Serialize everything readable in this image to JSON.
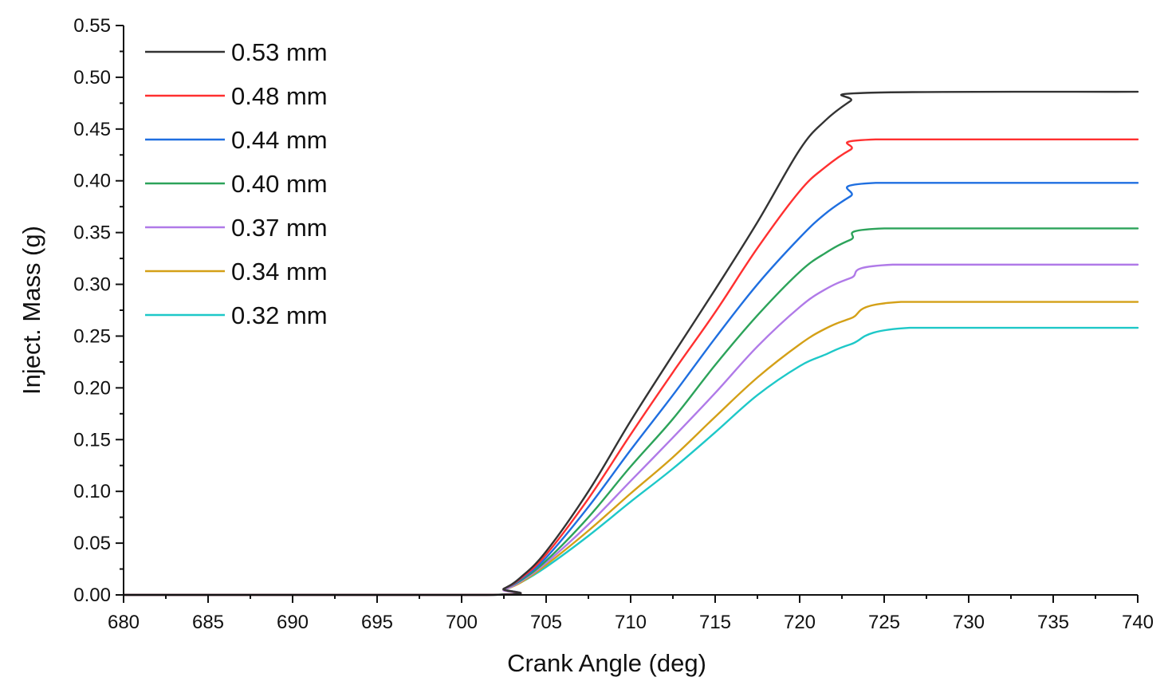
{
  "chart_data": {
    "type": "line",
    "title": "",
    "xlabel": "Crank Angle (deg)",
    "ylabel": "Inject. Mass (g)",
    "xlim": [
      680,
      740
    ],
    "ylim": [
      0,
      0.55
    ],
    "xticks": [
      "680",
      "685",
      "690",
      "695",
      "700",
      "705",
      "710",
      "715",
      "720",
      "725",
      "730",
      "735",
      "740"
    ],
    "yticks": [
      "0.00",
      "0.05",
      "0.10",
      "0.15",
      "0.20",
      "0.25",
      "0.30",
      "0.35",
      "0.40",
      "0.45",
      "0.50",
      "0.55"
    ],
    "grid": false,
    "legend_position": "top-left",
    "series": [
      {
        "name": "0.53 mm",
        "color": "#333333",
        "x": [
          680,
          701.5,
          702.5,
          703.5,
          705,
          707.5,
          710,
          712.5,
          715,
          717.5,
          720,
          721.5,
          723,
          724,
          740
        ],
        "y": [
          0,
          0,
          0.006,
          0.017,
          0.042,
          0.1,
          0.168,
          0.232,
          0.295,
          0.36,
          0.43,
          0.458,
          0.477,
          0.485,
          0.486
        ]
      },
      {
        "name": "0.48 mm",
        "color": "#ff3030",
        "x": [
          680,
          701.5,
          702.5,
          703.5,
          705,
          707.5,
          710,
          712.5,
          715,
          717.5,
          720,
          721.5,
          723,
          724.5,
          740
        ],
        "y": [
          0,
          0,
          0.006,
          0.016,
          0.039,
          0.093,
          0.155,
          0.215,
          0.273,
          0.335,
          0.39,
          0.413,
          0.43,
          0.44,
          0.44
        ]
      },
      {
        "name": "0.44 mm",
        "color": "#1f6fe0",
        "x": [
          680,
          701.5,
          702.5,
          703.5,
          705,
          707.5,
          710,
          712.5,
          715,
          717.5,
          720,
          721.5,
          723,
          724.5,
          740
        ],
        "y": [
          0,
          0,
          0.006,
          0.015,
          0.036,
          0.085,
          0.14,
          0.193,
          0.248,
          0.3,
          0.345,
          0.368,
          0.385,
          0.398,
          0.398
        ]
      },
      {
        "name": "0.40 mm",
        "color": "#2ca35a",
        "x": [
          680,
          701.5,
          702.5,
          703.5,
          705,
          707.5,
          710,
          712.5,
          715,
          717.5,
          720,
          721.5,
          723,
          725,
          740
        ],
        "y": [
          0,
          0,
          0.006,
          0.014,
          0.033,
          0.075,
          0.124,
          0.17,
          0.222,
          0.27,
          0.312,
          0.33,
          0.343,
          0.354,
          0.354
        ]
      },
      {
        "name": "0.37 mm",
        "color": "#b07ae8",
        "x": [
          680,
          701.5,
          702.5,
          703.5,
          705,
          707.5,
          710,
          712.5,
          715,
          717.5,
          720,
          721.5,
          723,
          725.5,
          740
        ],
        "y": [
          0,
          0,
          0.005,
          0.013,
          0.031,
          0.068,
          0.11,
          0.152,
          0.195,
          0.24,
          0.278,
          0.295,
          0.306,
          0.319,
          0.319
        ]
      },
      {
        "name": "0.34 mm",
        "color": "#d4a017",
        "x": [
          680,
          701.5,
          702.5,
          703.5,
          705,
          707.5,
          710,
          712.5,
          715,
          717.5,
          720,
          721.5,
          723,
          726,
          740
        ],
        "y": [
          0,
          0,
          0.005,
          0.012,
          0.029,
          0.062,
          0.098,
          0.133,
          0.172,
          0.21,
          0.242,
          0.257,
          0.267,
          0.283,
          0.283
        ]
      },
      {
        "name": "0.32 mm",
        "color": "#1ec8c8",
        "x": [
          680,
          701.5,
          702.5,
          703.5,
          705,
          707.5,
          710,
          712.5,
          715,
          717.5,
          720,
          721.5,
          723,
          726.5,
          740
        ],
        "y": [
          0,
          0,
          0.005,
          0.012,
          0.027,
          0.057,
          0.09,
          0.122,
          0.157,
          0.193,
          0.221,
          0.232,
          0.242,
          0.258,
          0.258
        ]
      }
    ]
  }
}
